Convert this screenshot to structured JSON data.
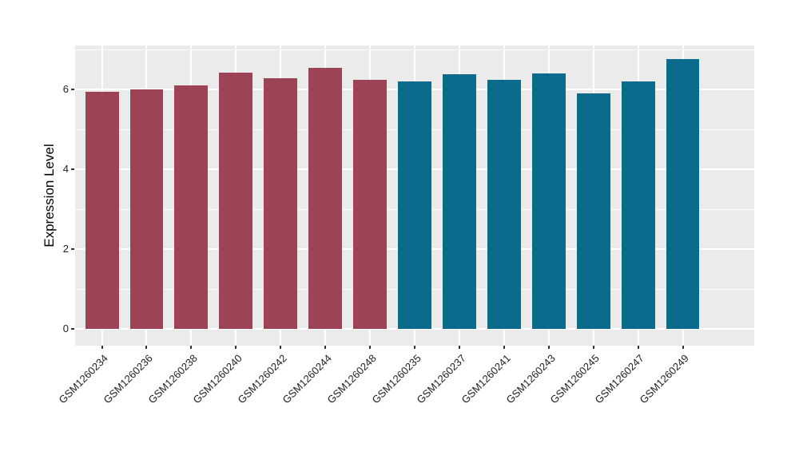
{
  "figure": {
    "title": "",
    "background_color": "#FFFFFF",
    "panel_background_color": "#EBEBEB",
    "gridline_color": "#FFFFFF"
  },
  "chart_data": {
    "type": "bar",
    "title": "",
    "xlabel": "",
    "ylabel": "Expression Level",
    "categories": [
      "GSM1260234",
      "GSM1260236",
      "GSM1260238",
      "GSM1260240",
      "GSM1260242",
      "GSM1260244",
      "GSM1260248",
      "GSM1260235",
      "GSM1260237",
      "GSM1260241",
      "GSM1260243",
      "GSM1260245",
      "GSM1260247",
      "GSM1260249"
    ],
    "values": [
      5.94,
      6.01,
      6.11,
      6.43,
      6.29,
      6.55,
      6.25,
      6.2,
      6.39,
      6.25,
      6.41,
      5.9,
      6.2,
      6.77
    ],
    "bar_groups": [
      "group1",
      "group1",
      "group1",
      "group1",
      "group1",
      "group1",
      "group1",
      "group2",
      "group2",
      "group2",
      "group2",
      "group2",
      "group2",
      "group2"
    ],
    "group_colors": {
      "group1": "#9C4355",
      "group2": "#0C6B8C"
    },
    "yticks": [
      0,
      2,
      4,
      6
    ],
    "yticks_minor": [
      1,
      3,
      5,
      7
    ],
    "ylim": [
      -0.42,
      7.1
    ],
    "grid": true,
    "legend_position": "none",
    "bar_width_ratio": 0.75,
    "x_label_rotation_deg": 45
  }
}
